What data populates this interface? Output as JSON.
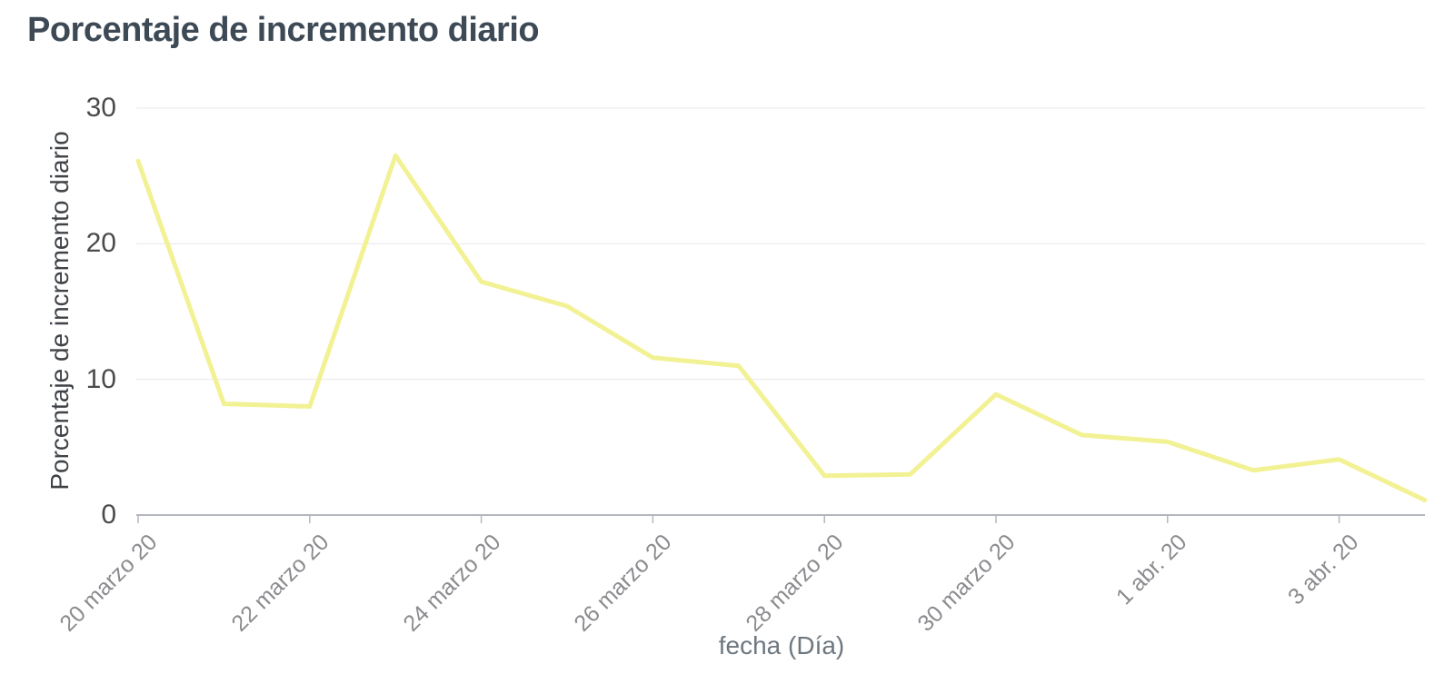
{
  "chart_data": {
    "type": "line",
    "title": "Porcentaje de incremento diario",
    "xlabel": "fecha (Día)",
    "ylabel": "Porcentaje de incremento diario",
    "y_ticks": [
      0,
      10,
      20,
      30
    ],
    "ylim": [
      0,
      30
    ],
    "grid": true,
    "legend": false,
    "x_tick_labels": [
      "20 marzo 20",
      "22 marzo 20",
      "24 marzo 20",
      "26 marzo 20",
      "28 marzo 20",
      "30 marzo 20",
      "1 abr. 20",
      "3 abr. 20"
    ],
    "label_every_n_points": 2,
    "values": [
      26.1,
      8.2,
      8.0,
      26.5,
      17.2,
      15.4,
      11.6,
      11.0,
      2.9,
      3.0,
      8.9,
      5.9,
      5.4,
      3.3,
      4.1,
      1.1
    ],
    "line_color": "#f2f194",
    "axis_line_color": "#b4b7be",
    "gridline_color": "#e8e8ea"
  }
}
